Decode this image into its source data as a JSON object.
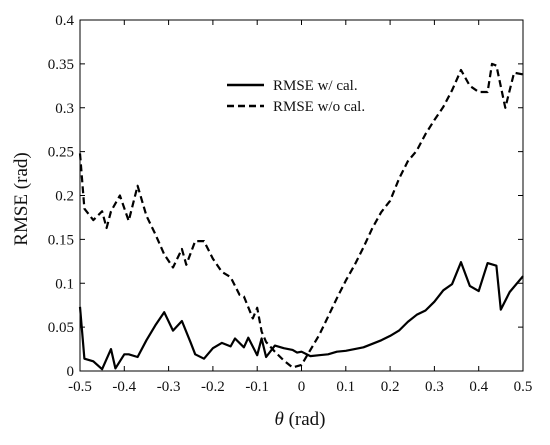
{
  "chart_data": {
    "type": "line",
    "title": "",
    "xlabel": {
      "symbol": "θ",
      "unit": " (rad)"
    },
    "ylabel": "RMSE (rad)",
    "xlim": [
      -0.5,
      0.5
    ],
    "ylim": [
      0,
      0.4
    ],
    "x_ticks": [
      -0.5,
      -0.4,
      -0.3,
      -0.2,
      -0.1,
      0,
      0.1,
      0.2,
      0.3,
      0.4,
      0.5
    ],
    "x_tick_labels": [
      "-0.5",
      "-0.4",
      "-0.3",
      "-0.2",
      "-0.1",
      "0",
      "0.1",
      "0.2",
      "0.3",
      "0.4",
      "0.5"
    ],
    "y_ticks": [
      0,
      0.05,
      0.1,
      0.15,
      0.2,
      0.25,
      0.3,
      0.35,
      0.4
    ],
    "y_tick_labels": [
      "0",
      "0.05",
      "0.1",
      "0.15",
      "0.2",
      "0.25",
      "0.3",
      "0.35",
      "0.4"
    ],
    "grid": false,
    "legend_position": "upper-center",
    "series": [
      {
        "name": "RMSE w/ cal.",
        "style": "solid",
        "color": "#000000",
        "x": [
          -0.5,
          -0.49,
          -0.47,
          -0.45,
          -0.43,
          -0.42,
          -0.4,
          -0.39,
          -0.37,
          -0.35,
          -0.33,
          -0.31,
          -0.29,
          -0.27,
          -0.25,
          -0.24,
          -0.22,
          -0.2,
          -0.18,
          -0.16,
          -0.15,
          -0.13,
          -0.12,
          -0.1,
          -0.09,
          -0.08,
          -0.06,
          -0.04,
          -0.02,
          -0.01,
          0.0,
          0.02,
          0.04,
          0.06,
          0.08,
          0.1,
          0.12,
          0.14,
          0.16,
          0.18,
          0.2,
          0.22,
          0.24,
          0.26,
          0.28,
          0.3,
          0.32,
          0.34,
          0.36,
          0.38,
          0.4,
          0.42,
          0.44,
          0.45,
          0.47,
          0.5
        ],
        "y": [
          0.073,
          0.014,
          0.011,
          0.002,
          0.025,
          0.003,
          0.019,
          0.019,
          0.016,
          0.035,
          0.052,
          0.067,
          0.046,
          0.057,
          0.032,
          0.019,
          0.014,
          0.026,
          0.032,
          0.028,
          0.037,
          0.027,
          0.038,
          0.018,
          0.037,
          0.016,
          0.029,
          0.026,
          0.024,
          0.021,
          0.022,
          0.017,
          0.018,
          0.019,
          0.022,
          0.023,
          0.025,
          0.027,
          0.031,
          0.035,
          0.04,
          0.046,
          0.056,
          0.064,
          0.069,
          0.079,
          0.092,
          0.099,
          0.124,
          0.097,
          0.091,
          0.123,
          0.12,
          0.07,
          0.09,
          0.108
        ]
      },
      {
        "name": "RMSE w/o cal.",
        "style": "dashed",
        "color": "#000000",
        "x": [
          -0.5,
          -0.49,
          -0.47,
          -0.45,
          -0.44,
          -0.43,
          -0.41,
          -0.39,
          -0.37,
          -0.35,
          -0.33,
          -0.31,
          -0.29,
          -0.27,
          -0.26,
          -0.24,
          -0.22,
          -0.2,
          -0.18,
          -0.16,
          -0.14,
          -0.13,
          -0.11,
          -0.1,
          -0.09,
          -0.08,
          -0.06,
          -0.04,
          -0.02,
          0.0,
          0.02,
          0.04,
          0.06,
          0.08,
          0.1,
          0.12,
          0.14,
          0.16,
          0.18,
          0.2,
          0.22,
          0.24,
          0.26,
          0.28,
          0.3,
          0.32,
          0.34,
          0.36,
          0.38,
          0.4,
          0.42,
          0.43,
          0.44,
          0.46,
          0.48,
          0.5
        ],
        "y": [
          0.248,
          0.185,
          0.172,
          0.182,
          0.163,
          0.182,
          0.2,
          0.171,
          0.211,
          0.177,
          0.156,
          0.133,
          0.118,
          0.139,
          0.121,
          0.148,
          0.148,
          0.128,
          0.113,
          0.107,
          0.087,
          0.085,
          0.06,
          0.072,
          0.045,
          0.033,
          0.022,
          0.012,
          0.004,
          0.007,
          0.024,
          0.041,
          0.062,
          0.083,
          0.103,
          0.121,
          0.141,
          0.163,
          0.181,
          0.194,
          0.219,
          0.239,
          0.251,
          0.27,
          0.286,
          0.301,
          0.32,
          0.343,
          0.325,
          0.318,
          0.318,
          0.35,
          0.348,
          0.3,
          0.34,
          0.338
        ]
      }
    ]
  }
}
